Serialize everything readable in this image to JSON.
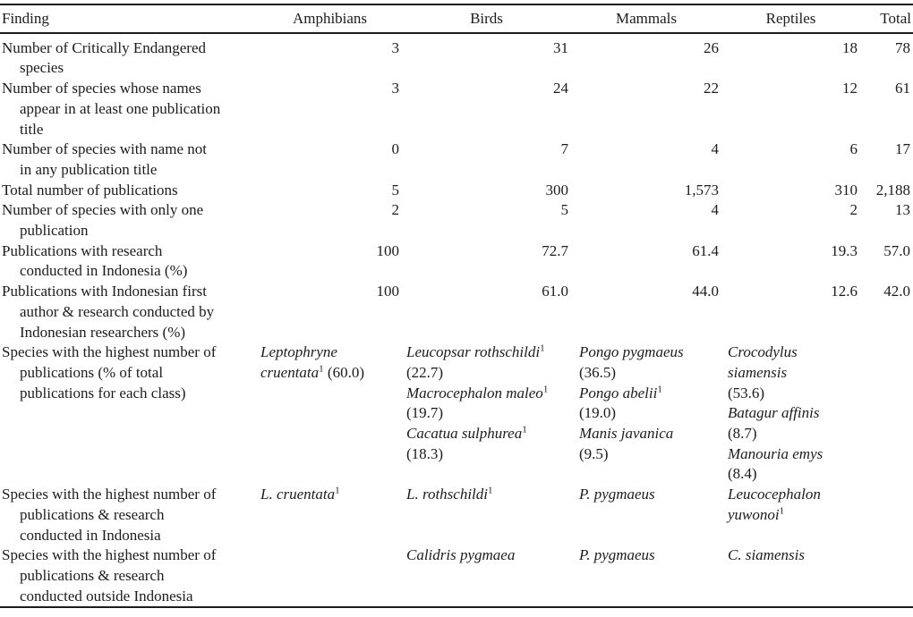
{
  "meta": {
    "background_color": "#ffffff",
    "text_color": "#1c1c1c",
    "rule_color": "#1c1c1c"
  },
  "table": {
    "columns": [
      {
        "key": "finding",
        "label": "Finding",
        "align": "left"
      },
      {
        "key": "amphibians",
        "label": "Amphibians",
        "align": "center"
      },
      {
        "key": "birds",
        "label": "Birds",
        "align": "center"
      },
      {
        "key": "mammals",
        "label": "Mammals",
        "align": "center"
      },
      {
        "key": "reptiles",
        "label": "Reptiles",
        "align": "center"
      },
      {
        "key": "total",
        "label": "Total",
        "align": "right"
      }
    ],
    "value_keys": [
      "amphibians",
      "birds",
      "mammals",
      "reptiles",
      "total"
    ],
    "rows": [
      {
        "finding_lines": [
          "Number of Critically Endangered",
          "species"
        ],
        "cells": {
          "amphibians": "3",
          "birds": "31",
          "mammals": "26",
          "reptiles": "18",
          "total": "78"
        }
      },
      {
        "finding_lines": [
          "Number of species whose names",
          "appear in at least one publication",
          "title"
        ],
        "cells": {
          "amphibians": "3",
          "birds": "24",
          "mammals": "22",
          "reptiles": "12",
          "total": "61"
        }
      },
      {
        "finding_lines": [
          "Number of species with name not",
          "in any publication title"
        ],
        "cells": {
          "amphibians": "0",
          "birds": "7",
          "mammals": "4",
          "reptiles": "6",
          "total": "17"
        }
      },
      {
        "finding_lines": [
          "Total number of publications"
        ],
        "cells": {
          "amphibians": "5",
          "birds": "300",
          "mammals": "1,573",
          "reptiles": "310",
          "total": "2,188"
        }
      },
      {
        "finding_lines": [
          "Number of species with only one",
          "publication"
        ],
        "cells": {
          "amphibians": "2",
          "birds": "5",
          "mammals": "4",
          "reptiles": "2",
          "total": "13"
        }
      },
      {
        "finding_lines": [
          "Publications with research",
          "conducted in Indonesia (%)"
        ],
        "cells": {
          "amphibians": "100",
          "birds": "72.7",
          "mammals": "61.4",
          "reptiles": "19.3",
          "total": "57.0"
        }
      },
      {
        "finding_lines": [
          "Publications with Indonesian first",
          "author & research conducted by",
          "Indonesian researchers (%)"
        ],
        "cells": {
          "amphibians": "100",
          "birds": "61.0",
          "mammals": "44.0",
          "reptiles": "12.6",
          "total": "42.0"
        }
      },
      {
        "finding_lines": [
          "Species with the highest number of",
          "publications (% of total",
          "publications for each class)"
        ],
        "cells": {
          "amphibians": [
            [
              {
                "t": "Leptophryne",
                "i": true
              }
            ],
            [
              {
                "t": "cruentata",
                "i": true
              },
              {
                "t": "1",
                "sup": true
              },
              {
                "t": " (60.0)"
              }
            ]
          ],
          "birds": [
            [
              {
                "t": "Leucopsar rothschildi",
                "i": true
              },
              {
                "t": "1",
                "sup": true
              }
            ],
            [
              {
                "t": "(22.7)"
              }
            ],
            [
              {
                "t": "Macrocephalon maleo",
                "i": true
              },
              {
                "t": "1",
                "sup": true
              }
            ],
            [
              {
                "t": "(19.7)"
              }
            ],
            [
              {
                "t": "Cacatua sulphurea",
                "i": true
              },
              {
                "t": "1",
                "sup": true
              }
            ],
            [
              {
                "t": "(18.3)"
              }
            ]
          ],
          "mammals": [
            [
              {
                "t": "Pongo pygmaeus",
                "i": true
              }
            ],
            [
              {
                "t": "(36.5)"
              }
            ],
            [
              {
                "t": "Pongo abelii",
                "i": true
              },
              {
                "t": "1",
                "sup": true
              }
            ],
            [
              {
                "t": "(19.0)"
              }
            ],
            [
              {
                "t": "Manis javanica",
                "i": true
              }
            ],
            [
              {
                "t": "(9.5)"
              }
            ]
          ],
          "reptiles": [
            [
              {
                "t": "Crocodylus",
                "i": true
              }
            ],
            [
              {
                "t": "siamensis",
                "i": true
              }
            ],
            [
              {
                "t": "(53.6)"
              }
            ],
            [
              {
                "t": "Batagur affinis",
                "i": true
              }
            ],
            [
              {
                "t": "(8.7)"
              }
            ],
            [
              {
                "t": "Manouria emys",
                "i": true
              }
            ],
            [
              {
                "t": "(8.4)"
              }
            ]
          ],
          "total": null
        }
      },
      {
        "finding_lines": [
          "Species with the highest number of",
          "publications & research",
          "conducted in Indonesia"
        ],
        "cells": {
          "amphibians": [
            [
              {
                "t": "L. cruentata",
                "i": true
              },
              {
                "t": "1",
                "sup": true
              }
            ]
          ],
          "birds": [
            [
              {
                "t": "L. rothschildi",
                "i": true
              },
              {
                "t": "1",
                "sup": true
              }
            ]
          ],
          "mammals": [
            [
              {
                "t": "P. pygmaeus",
                "i": true
              }
            ]
          ],
          "reptiles": [
            [
              {
                "t": "Leucocephalon",
                "i": true
              }
            ],
            [
              {
                "t": "yuwonoi",
                "i": true
              },
              {
                "t": "1",
                "sup": true
              }
            ]
          ],
          "total": null
        }
      },
      {
        "finding_lines": [
          "Species with the highest number of",
          "publications & research",
          "conducted outside Indonesia"
        ],
        "cells": {
          "amphibians": null,
          "birds": [
            [
              {
                "t": "Calidris pygmaea",
                "i": true
              }
            ]
          ],
          "mammals": [
            [
              {
                "t": "P. pygmaeus",
                "i": true
              }
            ]
          ],
          "reptiles": [
            [
              {
                "t": "C. siamensis",
                "i": true
              }
            ]
          ],
          "total": null
        }
      }
    ]
  }
}
